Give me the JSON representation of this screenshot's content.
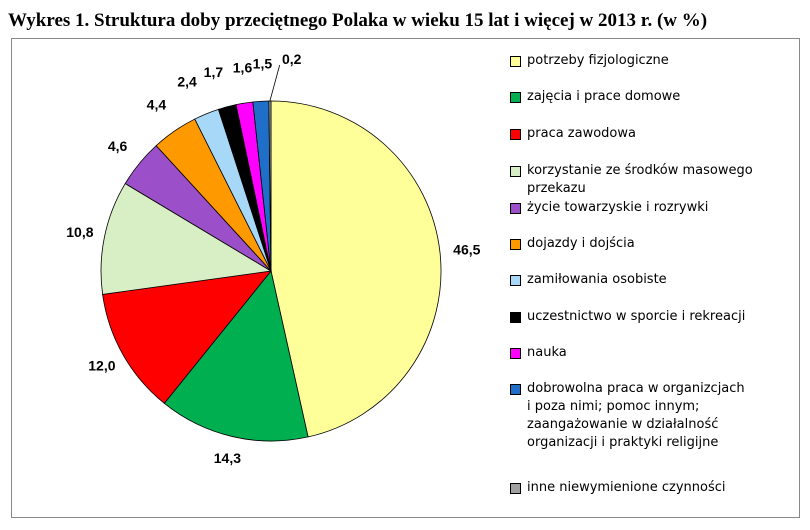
{
  "chart_data": {
    "type": "pie",
    "title": "Wykres 1. Struktura doby przeciętnego Polaka w wieku 15 lat i więcej w 2013 r. (w %)",
    "slices": [
      {
        "label": "potrzeby fizjologiczne",
        "value": 46.5,
        "display": "46,5",
        "color": "#FFFF99"
      },
      {
        "label": "zajęcia i prace domowe",
        "value": 14.3,
        "display": "14,3",
        "color": "#00B050"
      },
      {
        "label": "praca zawodowa",
        "value": 12.0,
        "display": "12,0",
        "color": "#FF0000"
      },
      {
        "label": "korzystanie ze środków masowego przekazu",
        "value": 10.8,
        "display": "10,8",
        "color": "#D8EEC4"
      },
      {
        "label": "życie towarzyskie i rozrywki",
        "value": 4.6,
        "display": "4,6",
        "color": "#9B4FC8"
      },
      {
        "label": "dojazdy i dojścia",
        "value": 4.4,
        "display": "4,4",
        "color": "#FF9900"
      },
      {
        "label": "zamiłowania osobiste",
        "value": 2.4,
        "display": "2,4",
        "color": "#A8D8F8"
      },
      {
        "label": "uczestnictwo w sporcie i rekreacji",
        "value": 1.7,
        "display": "1,7",
        "color": "#000000"
      },
      {
        "label": "nauka",
        "value": 1.6,
        "display": "1,6",
        "color": "#FF00FF"
      },
      {
        "label": "dobrowolna praca w organizcjach i poza nimi; pomoc innym; zaangażowanie w działalność organizacji i praktyki religijne",
        "value": 1.5,
        "display": "1,5",
        "color": "#1F6FC8"
      },
      {
        "label": "inne niewymienione czynności",
        "value": 0.2,
        "display": "0,2",
        "color": "#A0A0A0"
      }
    ],
    "legend_placement": "right",
    "legend_lines": [
      [
        "potrzeby fizjologiczne"
      ],
      [
        "zajęcia i prace domowe"
      ],
      [
        "praca zawodowa"
      ],
      [
        "korzystanie ze środków masowego",
        "przekazu"
      ],
      [
        "życie towarzyskie i rozrywki"
      ],
      [
        "dojazdy i dojścia"
      ],
      [
        "zamiłowania osobiste"
      ],
      [
        "uczestnictwo w sporcie i rekreacji"
      ],
      [
        "nauka"
      ],
      [
        "dobrowolna praca w organizcjach",
        "i poza nimi; pomoc innym;",
        "zaangażowanie w działalność",
        "organizacji i praktyki religijne"
      ],
      [
        "inne niewymienione czynności"
      ]
    ]
  }
}
